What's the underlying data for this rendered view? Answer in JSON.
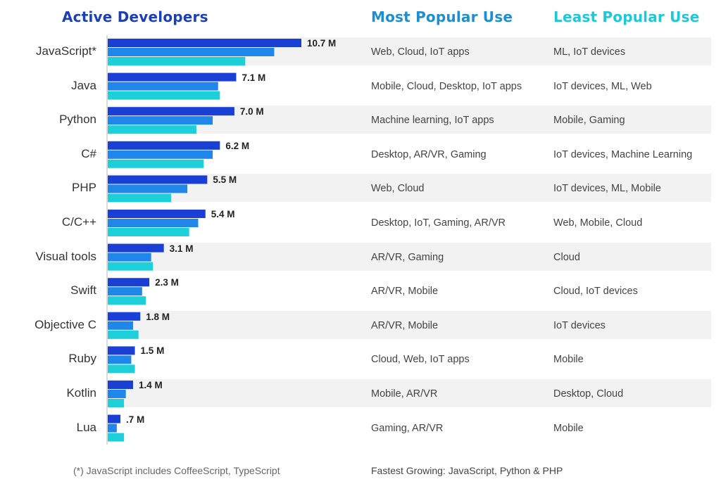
{
  "headers": {
    "active": "Active Developers",
    "most": "Most Popular Use",
    "least": "Least Popular Use"
  },
  "colors": {
    "header_active": "#1a3fb8",
    "header_most": "#1d8fd0",
    "header_least": "#1ec8d8",
    "bar_dark": "#1a3fd4",
    "bar_mid": "#1f86ea",
    "bar_light": "#1dcfd8",
    "band": "#f2f2f2"
  },
  "footnote_left": "(*) JavaScript includes CoffeeScript, TypeScript",
  "footnote_right": "Fastest Growing: JavaScript, Python & PHP",
  "chart_data": {
    "type": "bar",
    "orientation": "horizontal",
    "categories": [
      "JavaScript*",
      "Java",
      "Python",
      "C#",
      "PHP",
      "C/C++",
      "Visual tools",
      "Swift",
      "Objective C",
      "Ruby",
      "Kotlin",
      "Lua"
    ],
    "value_labels": [
      "10.7 M",
      "7.1 M",
      "7.0 M",
      "6.2 M",
      "5.5 M",
      "5.4 M",
      "3.1 M",
      "2.3 M",
      "1.8 M",
      "1.5 M",
      "1.4 M",
      ".7 M"
    ],
    "values_million": [
      10.7,
      7.1,
      7.0,
      6.2,
      5.5,
      5.4,
      3.1,
      2.3,
      1.8,
      1.5,
      1.4,
      0.7
    ],
    "series": [
      {
        "values": [
          10.7,
          7.1,
          7.0,
          6.2,
          5.5,
          5.4,
          3.1,
          2.3,
          1.8,
          1.5,
          1.4,
          0.7
        ]
      },
      {
        "values": [
          9.2,
          6.1,
          5.8,
          5.8,
          4.4,
          5.0,
          2.4,
          1.9,
          1.4,
          1.3,
          1.0,
          0.5
        ]
      },
      {
        "values": [
          7.6,
          6.2,
          4.9,
          5.3,
          3.5,
          4.5,
          2.5,
          2.1,
          1.7,
          1.5,
          0.9,
          0.9
        ]
      }
    ],
    "xlim": [
      0,
      10.7
    ],
    "grid": false,
    "legend": "none"
  },
  "rows": [
    {
      "most": "Web, Cloud, IoT apps",
      "least": "ML, IoT devices"
    },
    {
      "most": "Mobile, Cloud, Desktop, IoT apps",
      "least": "IoT devices, ML, Web"
    },
    {
      "most": "Machine learning, IoT apps",
      "least": "Mobile, Gaming"
    },
    {
      "most": "Desktop, AR/VR, Gaming",
      "least": "IoT devices, Machine Learning"
    },
    {
      "most": "Web, Cloud",
      "least": "IoT devices, ML, Mobile"
    },
    {
      "most": "Desktop, IoT, Gaming, AR/VR",
      "least": "Web, Mobile, Cloud"
    },
    {
      "most": "AR/VR, Gaming",
      "least": "Cloud"
    },
    {
      "most": "AR/VR, Mobile",
      "least": "Cloud, IoT devices"
    },
    {
      "most": "AR/VR, Mobile",
      "least": "IoT devices"
    },
    {
      "most": "Cloud, Web, IoT apps",
      "least": "Mobile"
    },
    {
      "most": "Mobile, AR/VR",
      "least": "Desktop, Cloud"
    },
    {
      "most": "Gaming, AR/VR",
      "least": "Mobile"
    }
  ]
}
